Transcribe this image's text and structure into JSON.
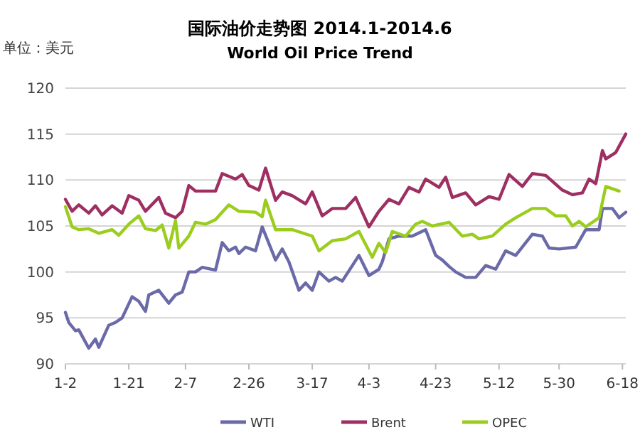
{
  "chart_data": {
    "type": "line",
    "title": "国际油价走势图 2014.1-2014.6",
    "subtitle": "World Oil Price Trend",
    "ylabel": "单位：美元",
    "xlim": [
      "--01-02",
      "--06-19"
    ],
    "ylim": [
      90,
      120
    ],
    "yticks": [
      90,
      95,
      100,
      105,
      110,
      115,
      120
    ],
    "xticks": [
      {
        "value": "--01-02",
        "label": "1-2"
      },
      {
        "value": "--01-21",
        "label": "1-21"
      },
      {
        "value": "--02-07",
        "label": "2-7"
      },
      {
        "value": "--02-26",
        "label": "2-26"
      },
      {
        "value": "--03-17",
        "label": "3-17"
      },
      {
        "value": "--04-03",
        "label": "4-3"
      },
      {
        "value": "--04-23",
        "label": "4-23"
      },
      {
        "value": "--05-12",
        "label": "5-12"
      },
      {
        "value": "--05-30",
        "label": "5-30"
      },
      {
        "value": "--06-18",
        "label": "6-18"
      }
    ],
    "grid": "y",
    "legend": "bottom",
    "series": [
      {
        "name": "WTI",
        "color": "#6b6aa8",
        "x": [
          "--01-02",
          "--01-03",
          "--01-05",
          "--01-06",
          "--01-09",
          "--01-11",
          "--01-12",
          "--01-15",
          "--01-17",
          "--01-19",
          "--01-22",
          "--01-24",
          "--01-26",
          "--01-27",
          "--01-30",
          "--02-02",
          "--02-04",
          "--02-06",
          "--02-08",
          "--02-10",
          "--02-12",
          "--02-16",
          "--02-18",
          "--02-20",
          "--02-22",
          "--02-23",
          "--02-25",
          "--02-28",
          "--03-02",
          "--03-06",
          "--03-08",
          "--03-10",
          "--03-13",
          "--03-15",
          "--03-17",
          "--03-19",
          "--03-22",
          "--03-24",
          "--03-26",
          "--03-31",
          "--04-03",
          "--04-06",
          "--04-07",
          "--04-09",
          "--04-12",
          "--04-16",
          "--04-20",
          "--04-23",
          "--04-25",
          "--04-27",
          "--04-29",
          "--05-02",
          "--05-05",
          "--05-08",
          "--05-11",
          "--05-14",
          "--05-17",
          "--05-22",
          "--05-25",
          "--05-27",
          "--05-30",
          "--06-04",
          "--06-07",
          "--06-11",
          "--06-12",
          "--06-15",
          "--06-17",
          "--06-19"
        ],
        "values": [
          95.6,
          94.5,
          93.6,
          93.7,
          91.7,
          92.7,
          91.8,
          94.2,
          94.5,
          95.0,
          97.3,
          96.8,
          95.7,
          97.5,
          98.0,
          96.6,
          97.5,
          97.8,
          100.0,
          100.0,
          100.5,
          100.2,
          103.2,
          102.3,
          102.7,
          102.0,
          102.7,
          102.3,
          104.9,
          101.3,
          102.5,
          101.1,
          98.0,
          98.8,
          98.0,
          100.0,
          99.0,
          99.4,
          99.0,
          101.8,
          99.6,
          100.3,
          101.1,
          103.6,
          103.9,
          103.9,
          104.6,
          101.8,
          101.3,
          100.6,
          100.0,
          99.4,
          99.4,
          100.7,
          100.3,
          102.3,
          101.8,
          104.1,
          103.9,
          102.6,
          102.5,
          102.7,
          104.6,
          104.6,
          106.9,
          106.9,
          105.9,
          106.5
        ]
      },
      {
        "name": "Brent",
        "color": "#9e2f62",
        "x": [
          "--01-02",
          "--01-04",
          "--01-06",
          "--01-09",
          "--01-11",
          "--01-13",
          "--01-16",
          "--01-19",
          "--01-21",
          "--01-24",
          "--01-26",
          "--01-30",
          "--02-01",
          "--02-04",
          "--02-06",
          "--02-08",
          "--02-10",
          "--02-16",
          "--02-18",
          "--02-22",
          "--02-24",
          "--02-26",
          "--03-01",
          "--03-03",
          "--03-06",
          "--03-08",
          "--03-11",
          "--03-15",
          "--03-17",
          "--03-20",
          "--03-23",
          "--03-27",
          "--03-30",
          "--04-03",
          "--04-06",
          "--04-09",
          "--04-12",
          "--04-15",
          "--04-18",
          "--04-20",
          "--04-24",
          "--04-26",
          "--04-28",
          "--05-02",
          "--05-05",
          "--05-09",
          "--05-12",
          "--05-15",
          "--05-19",
          "--05-22",
          "--05-26",
          "--05-31",
          "--06-03",
          "--06-06",
          "--06-08",
          "--06-10",
          "--06-12",
          "--06-13",
          "--06-16",
          "--06-19"
        ],
        "values": [
          107.9,
          106.6,
          107.3,
          106.4,
          107.2,
          106.2,
          107.2,
          106.4,
          108.3,
          107.8,
          106.6,
          108.1,
          106.4,
          105.9,
          106.6,
          109.4,
          108.8,
          108.8,
          110.7,
          110.1,
          110.6,
          109.4,
          108.9,
          111.3,
          107.8,
          108.7,
          108.3,
          107.4,
          108.7,
          106.1,
          106.9,
          106.9,
          108.1,
          104.9,
          106.6,
          107.9,
          107.4,
          109.2,
          108.7,
          110.1,
          109.2,
          110.3,
          108.1,
          108.6,
          107.3,
          108.2,
          107.9,
          110.6,
          109.3,
          110.7,
          110.5,
          108.9,
          108.4,
          108.6,
          110.1,
          109.6,
          113.2,
          112.3,
          113.0,
          115.0
        ]
      },
      {
        "name": "OPEC",
        "color": "#9acd1e",
        "x": [
          "--01-02",
          "--01-04",
          "--01-06",
          "--01-09",
          "--01-12",
          "--01-16",
          "--01-18",
          "--01-21",
          "--01-24",
          "--01-26",
          "--01-29",
          "--01-31",
          "--02-02",
          "--02-04",
          "--02-05",
          "--02-08",
          "--02-10",
          "--02-13",
          "--02-16",
          "--02-20",
          "--02-23",
          "--02-28",
          "--03-02",
          "--03-03",
          "--03-06",
          "--03-11",
          "--03-17",
          "--03-19",
          "--03-23",
          "--03-27",
          "--03-31",
          "--04-04",
          "--04-06",
          "--04-08",
          "--04-10",
          "--04-14",
          "--04-17",
          "--04-19",
          "--04-22",
          "--04-27",
          "--05-01",
          "--05-04",
          "--05-06",
          "--05-10",
          "--05-14",
          "--05-17",
          "--05-22",
          "--05-26",
          "--05-29",
          "--06-01",
          "--06-03",
          "--06-05",
          "--06-07",
          "--06-11",
          "--06-13",
          "--06-17"
        ],
        "values": [
          107.1,
          104.9,
          104.6,
          104.7,
          104.2,
          104.6,
          104.0,
          105.2,
          106.1,
          104.7,
          104.5,
          105.1,
          102.6,
          105.6,
          102.6,
          103.9,
          105.4,
          105.2,
          105.7,
          107.3,
          106.6,
          106.5,
          106.0,
          107.8,
          104.6,
          104.6,
          103.9,
          102.3,
          103.4,
          103.6,
          104.4,
          101.6,
          103.1,
          102.1,
          104.4,
          103.9,
          105.2,
          105.5,
          105.0,
          105.4,
          103.9,
          104.1,
          103.6,
          103.9,
          105.2,
          105.9,
          106.9,
          106.9,
          106.1,
          106.1,
          105.0,
          105.5,
          104.9,
          105.9,
          109.3,
          108.8
        ]
      }
    ]
  }
}
